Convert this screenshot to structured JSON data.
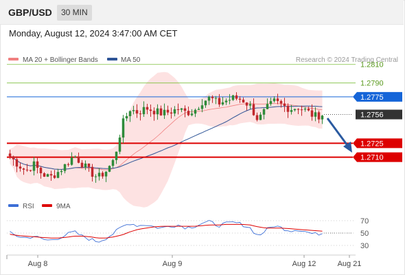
{
  "header": {
    "pair": "GBP/USD",
    "timeframe": "30 MIN"
  },
  "datetime": "Monday, August 12, 2024 3:47:00 AM CET",
  "legend": {
    "ma_bb": "MA 20 + Bollinger Bands",
    "ma50": "MA 50",
    "credit": "Research © 2024 Trading Central",
    "rsi": "RSI",
    "ma9": "9MA"
  },
  "colors": {
    "bb": "#f08080",
    "bb_fill": "#fde2e2",
    "ma50": "#2f5597",
    "green": "#7dbf3b",
    "blue": "#1565d8",
    "red": "#dd0000",
    "current": "#333333",
    "arrow": "#2a5aa0"
  },
  "chart_data": {
    "type": "candlestick",
    "x_ticks": [
      "Aug 8",
      "Aug 9",
      "Aug 12",
      "Aug 21"
    ],
    "price_levels": [
      {
        "value": "1.2810",
        "kind": "resistance-minor",
        "color": "#7dbf3b"
      },
      {
        "value": "1.2790",
        "kind": "resistance-minor",
        "color": "#7dbf3b"
      },
      {
        "value": "1.2775",
        "kind": "pivot",
        "color": "#1565d8"
      },
      {
        "value": "1.2756",
        "kind": "current",
        "color": "#333333"
      },
      {
        "value": "1.2725",
        "kind": "support",
        "color": "#dd0000"
      },
      {
        "value": "1.2710",
        "kind": "support",
        "color": "#dd0000"
      }
    ],
    "y_range": [
      1.266,
      1.2835
    ],
    "close_path": [
      1.2711,
      1.2702,
      1.2695,
      1.2702,
      1.2692,
      1.2688,
      1.2694,
      1.2702,
      1.2712,
      1.2703,
      1.2694,
      1.2688,
      1.2695,
      1.2707,
      1.2745,
      1.2762,
      1.2758,
      1.2763,
      1.276,
      1.2757,
      1.2759,
      1.2762,
      1.2758,
      1.276,
      1.277,
      1.2774,
      1.2768,
      1.2771,
      1.2774,
      1.2772,
      1.2765,
      1.275,
      1.2762,
      1.277,
      1.2766,
      1.2762,
      1.2764,
      1.276,
      1.2754,
      1.2756
    ],
    "rsi": {
      "ticks": [
        "70",
        "50",
        "30"
      ],
      "range": [
        20,
        80
      ],
      "rsi_path": [
        50,
        45,
        42,
        45,
        40,
        38,
        42,
        47,
        52,
        45,
        40,
        36,
        42,
        50,
        60,
        66,
        62,
        64,
        60,
        58,
        62,
        63,
        59,
        61,
        66,
        68,
        62,
        65,
        67,
        64,
        58,
        45,
        55,
        62,
        58,
        54,
        56,
        52,
        48,
        50
      ],
      "ma9_path": [
        48,
        46,
        45,
        44,
        43,
        42,
        42,
        43,
        45,
        45,
        44,
        42,
        42,
        44,
        47,
        52,
        56,
        58,
        60,
        61,
        61,
        61,
        61,
        61,
        62,
        63,
        63,
        64,
        64,
        64,
        63,
        60,
        58,
        58,
        58,
        57,
        56,
        55,
        54,
        53
      ]
    }
  }
}
